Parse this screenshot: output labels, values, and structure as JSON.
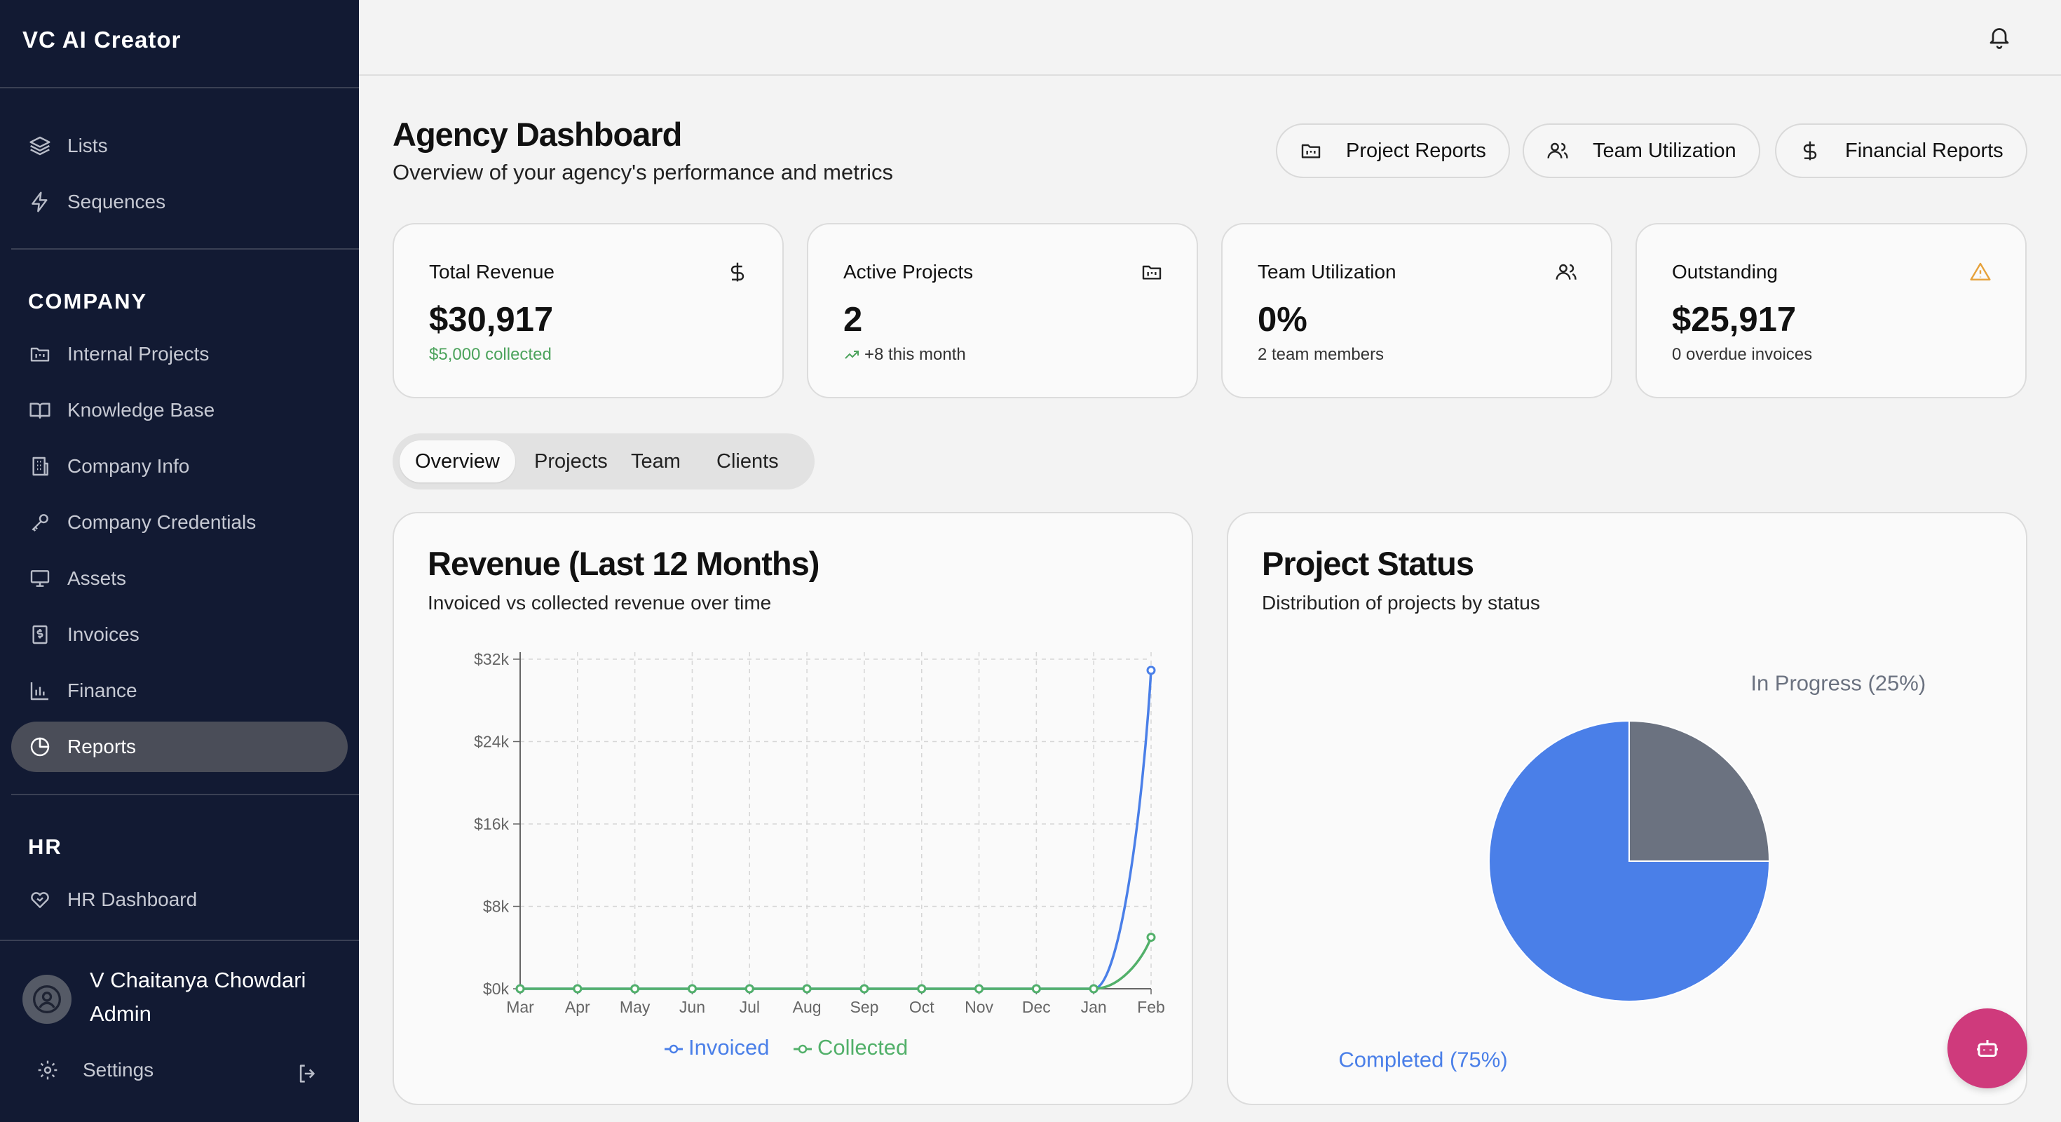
{
  "app": {
    "title": "VC AI Creator"
  },
  "sidebar": {
    "top_items": [
      {
        "label": "Lists",
        "icon": "layers-icon"
      },
      {
        "label": "Sequences",
        "icon": "zap-icon"
      }
    ],
    "company_section": "COMPANY",
    "company_items": [
      {
        "label": "Internal Projects",
        "icon": "folder-kanban-icon"
      },
      {
        "label": "Knowledge Base",
        "icon": "book-open-icon"
      },
      {
        "label": "Company Info",
        "icon": "building-icon"
      },
      {
        "label": "Company Credentials",
        "icon": "key-icon"
      },
      {
        "label": "Assets",
        "icon": "monitor-icon"
      },
      {
        "label": "Invoices",
        "icon": "receipt-icon"
      },
      {
        "label": "Finance",
        "icon": "bar-chart-icon"
      },
      {
        "label": "Reports",
        "icon": "pie-chart-icon",
        "active": true
      }
    ],
    "hr_section": "HR",
    "hr_items": [
      {
        "label": "HR Dashboard",
        "icon": "heart-handshake-icon"
      }
    ],
    "user": {
      "name": "V Chaitanya Chowdari",
      "role": "Admin"
    },
    "settings_label": "Settings"
  },
  "header": {
    "title": "Agency Dashboard",
    "subtitle": "Overview of your agency's performance and metrics",
    "buttons": [
      {
        "label": "Project Reports",
        "icon": "folder-kanban-icon"
      },
      {
        "label": "Team Utilization",
        "icon": "users-icon"
      },
      {
        "label": "Financial Reports",
        "icon": "dollar-icon"
      }
    ]
  },
  "stats": [
    {
      "label": "Total Revenue",
      "value": "$30,917",
      "sub": "$5,000 collected",
      "icon": "dollar-icon"
    },
    {
      "label": "Active Projects",
      "value": "2",
      "sub": "+8 this month",
      "icon": "folder-kanban-icon"
    },
    {
      "label": "Team Utilization",
      "value": "0%",
      "sub": "2 team members",
      "icon": "users-icon"
    },
    {
      "label": "Outstanding",
      "value": "$25,917",
      "sub": "0 overdue invoices",
      "icon": "alert-triangle-icon"
    }
  ],
  "tabs": [
    "Overview",
    "Projects",
    "Team",
    "Clients"
  ],
  "active_tab": "Overview",
  "revenue_panel": {
    "title": "Revenue (Last 12 Months)",
    "subtitle": "Invoiced vs collected revenue over time"
  },
  "status_panel": {
    "title": "Project Status",
    "subtitle": "Distribution of projects by status"
  },
  "colors": {
    "invoiced": "#4a7fe8",
    "collected": "#52b06a",
    "in_progress": "#6b7280",
    "completed": "#4a7fe8",
    "sidebar_bg": "#121a33",
    "fab": "#cf3a7c",
    "warning": "#e6a13a"
  },
  "chart_data": [
    {
      "type": "line",
      "title": "Revenue (Last 12 Months)",
      "categories": [
        "Mar",
        "Apr",
        "May",
        "Jun",
        "Jul",
        "Aug",
        "Sep",
        "Oct",
        "Nov",
        "Dec",
        "Jan",
        "Feb"
      ],
      "series": [
        {
          "name": "Invoiced",
          "values": [
            0,
            0,
            0,
            0,
            0,
            0,
            0,
            0,
            0,
            0,
            0,
            30917
          ]
        },
        {
          "name": "Collected",
          "values": [
            0,
            0,
            0,
            0,
            0,
            0,
            0,
            0,
            0,
            0,
            0,
            5000
          ]
        }
      ],
      "yticks": [
        "$0k",
        "$8k",
        "$16k",
        "$24k",
        "$32k"
      ],
      "ylim": [
        0,
        32000
      ],
      "grid": true,
      "legend": "bottom"
    },
    {
      "type": "pie",
      "title": "Project Status",
      "slices": [
        {
          "label": "In Progress (25%)",
          "value": 25
        },
        {
          "label": "Completed (75%)",
          "value": 75
        }
      ]
    }
  ]
}
